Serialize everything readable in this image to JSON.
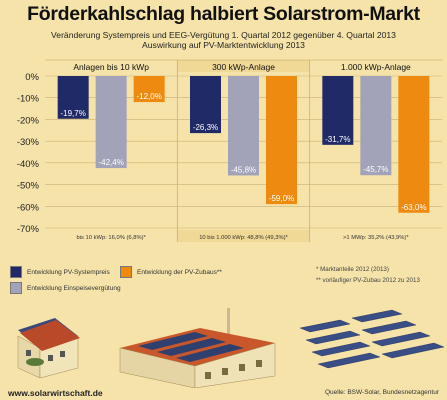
{
  "title": "Förderkahlschlag halbiert Solarstrom-Markt",
  "subtitle_1": "Veränderung Systempreis und EEG-Vergütung 1. Quartal 2012 gegenüber 4. Quartal 2013",
  "subtitle_2": "Auswirkung auf PV-Marktentwicklung 2013",
  "legend": [
    {
      "label": "Entwicklung PV-Systempreis",
      "color": "#1f2a66"
    },
    {
      "label": "Entwicklung der PV-Zubaus**",
      "color": "#ee8a10"
    },
    {
      "label": "Entwicklung Einspeisevergütung",
      "color": "#a2a2b8"
    }
  ],
  "notes": [
    "* Marktanteile 2012 (2013)",
    "** vorläufiger PV-Zubau   2012 zu 2013"
  ],
  "url": "www.solarwirtschaft.de",
  "source": "Quelle: BSW-Solar, Bundesnetzagentur",
  "chart_data": {
    "type": "bar",
    "categories": [
      "Anlagen bis 10 kWp",
      "300 kWp-Anlage",
      "1.000 kWp-Anlage"
    ],
    "category_footnotes": [
      "bis 10 kWp: 16,0% (6,8%)*",
      "10 bis 1.000 kWp: 48,8% (49,3%)*",
      ">1 MWp: 35,2% (43,9%)*"
    ],
    "series": [
      {
        "name": "Entwicklung PV-Systempreis",
        "color": "#1f2a66",
        "values": [
          -19.7,
          -26.3,
          -31.7
        ],
        "labels": [
          "-19,7%",
          "-26,3%",
          "-31,7%"
        ]
      },
      {
        "name": "Entwicklung Einspeisevergütung",
        "color": "#a2a2b8",
        "values": [
          -42.4,
          -45.8,
          -45.7
        ],
        "labels": [
          "-42,4%",
          "-45,8%",
          "-45,7%"
        ]
      },
      {
        "name": "Entwicklung der PV-Zubaus**",
        "color": "#ee8a10",
        "values": [
          -12.0,
          -59.0,
          -63.0
        ],
        "labels": [
          "-12,0%",
          "-59,0%",
          "-63,0%"
        ]
      }
    ],
    "yticks": [
      0,
      -10,
      -20,
      -30,
      -40,
      -50,
      -60,
      -70
    ],
    "ytick_labels": [
      "0%",
      "-10%",
      "-20%",
      "-30%",
      "-40%",
      "-50%",
      "-60%",
      "-70%"
    ],
    "ylim": [
      -70,
      0
    ],
    "grid": true,
    "legend_position": "bottom"
  }
}
